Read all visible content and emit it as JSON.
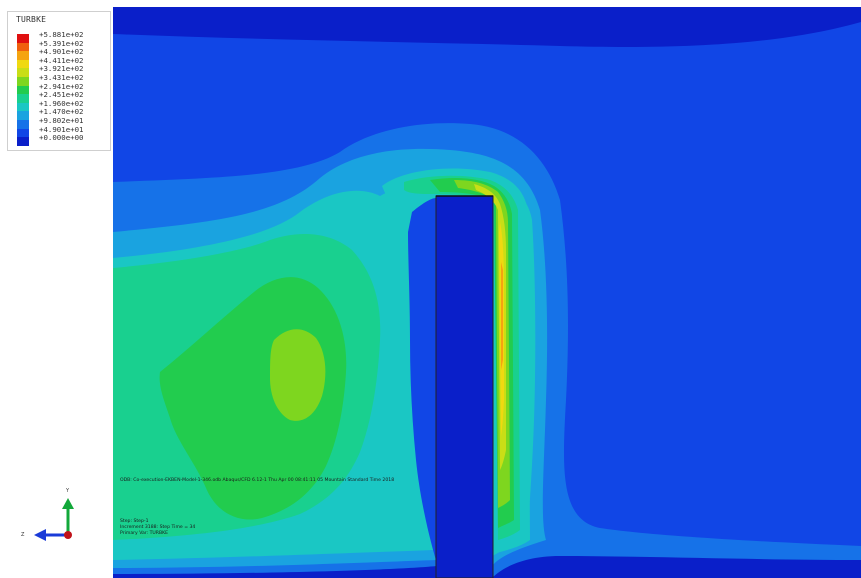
{
  "colors": {
    "band_0": "#0a1fc9",
    "band_1": "#1146e6",
    "band_2": "#1672e8",
    "band_3": "#1aa3e0",
    "band_4": "#1ac7c4",
    "band_5": "#19d08f",
    "band_6": "#22cc4e",
    "band_7": "#7ed61f",
    "band_8": "#c9de16",
    "band_9": "#f0d910",
    "band_10": "#f5a410",
    "band_11": "#f0600e",
    "band_12": "#e01010"
  },
  "legend": {
    "title": "TURBKE",
    "values": [
      "+5.881e+02",
      "+5.391e+02",
      "+4.901e+02",
      "+4.411e+02",
      "+3.921e+02",
      "+3.431e+02",
      "+2.941e+02",
      "+2.451e+02",
      "+1.960e+02",
      "+1.470e+02",
      "+9.802e+01",
      "+4.901e+01",
      "+0.000e+00"
    ]
  },
  "info": {
    "odb_line": "ODB: Co-execution-EKBEN-Model-1-346.odb    Abaqus/CFD 6.12-1    Thu Apr 00 08:41:11 05 Mountain Standard Time 2018",
    "step_line": "Step: Step-1",
    "increment_line": "Increment   3188: Step Time =       34",
    "variable_line": "Primary Var: TURBKE"
  },
  "triad": {
    "x_label": "Z",
    "y_label": "Y",
    "x_color": "#1a3bd8",
    "y_color": "#12a83a",
    "origin_color": "#c0121a"
  }
}
